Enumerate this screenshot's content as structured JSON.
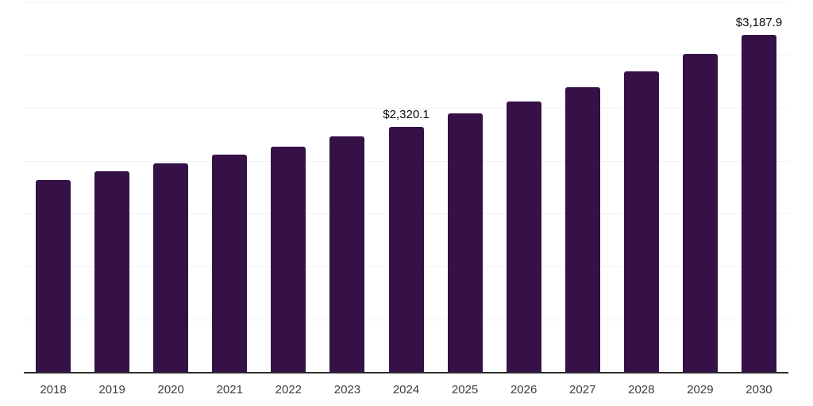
{
  "chart_data": {
    "type": "bar",
    "title": "",
    "xlabel": "",
    "ylabel": "",
    "categories": [
      "2018",
      "2019",
      "2020",
      "2021",
      "2022",
      "2023",
      "2024",
      "2025",
      "2026",
      "2027",
      "2028",
      "2029",
      "2030"
    ],
    "values": [
      1820,
      1900,
      1975,
      2055,
      2130,
      2230,
      2320.1,
      2445,
      2555,
      2690,
      2840,
      3010,
      3187.9
    ],
    "data_labels": {
      "2024": "$2,320.1",
      "2030": "$3,187.9"
    },
    "ylim": [
      0,
      3500
    ],
    "gridline_step": 500,
    "grid": true,
    "legend": false,
    "y_tick_labels_visible": false,
    "bar_color": "#351148",
    "gridline_color": "#f2f2f5",
    "axis_line_color": "#2b2b2b",
    "tick_label_color": "#3c3c3c",
    "data_label_color": "#0a0a0a",
    "background_color": "#ffffff"
  }
}
